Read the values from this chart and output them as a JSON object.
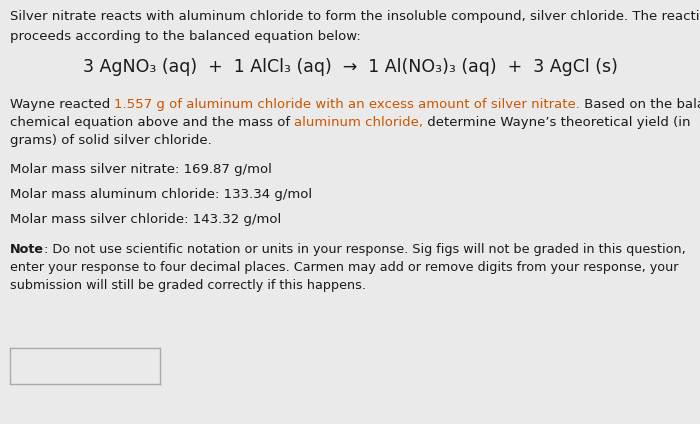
{
  "bg_color": "#eaeaea",
  "text_color": "#1a1a1a",
  "orange_color": "#cc5500",
  "intro_line1": "Silver nitrate reacts with aluminum chloride to form the insoluble compound, silver chloride. The reaction",
  "intro_line2": "proceeds according to the balanced equation below:",
  "equation": "3 AgNO₃ (aq)  +  1 AlCl₃ (aq)  →  1 Al(NO₃)₃ (aq)  +  3 AgCl (s)",
  "wayne_pre": "Wayne reacted ",
  "wayne_orange": "1.557 g of aluminum chloride with an excess amount of silver nitrate.",
  "wayne_post": " Based on the balanced",
  "line2_pre": "chemical equation above and the mass of ",
  "line2_orange": "aluminum chloride,",
  "line2_post": " determine Wayne’s theoretical yield (in",
  "line3": "grams) of solid silver chloride.",
  "molar_mass_1": "Molar mass silver nitrate: 169.87 g/mol",
  "molar_mass_2": "Molar mass aluminum chloride: 133.34 g/mol",
  "molar_mass_3": "Molar mass silver chloride: 143.32 g/mol",
  "note_bold": "Note",
  "note_text": ": Do not use scientific notation or units in your response. Sig figs will not be graded in this question,",
  "note_line2": "enter your response to four decimal places. Carmen may add or remove digits from your response, your",
  "note_line3": "submission will still be graded correctly if this happens.",
  "fs_main": 9.5,
  "fs_eq": 12.5,
  "fs_note": 9.2,
  "figw": 7.0,
  "figh": 4.24,
  "dpi": 100
}
